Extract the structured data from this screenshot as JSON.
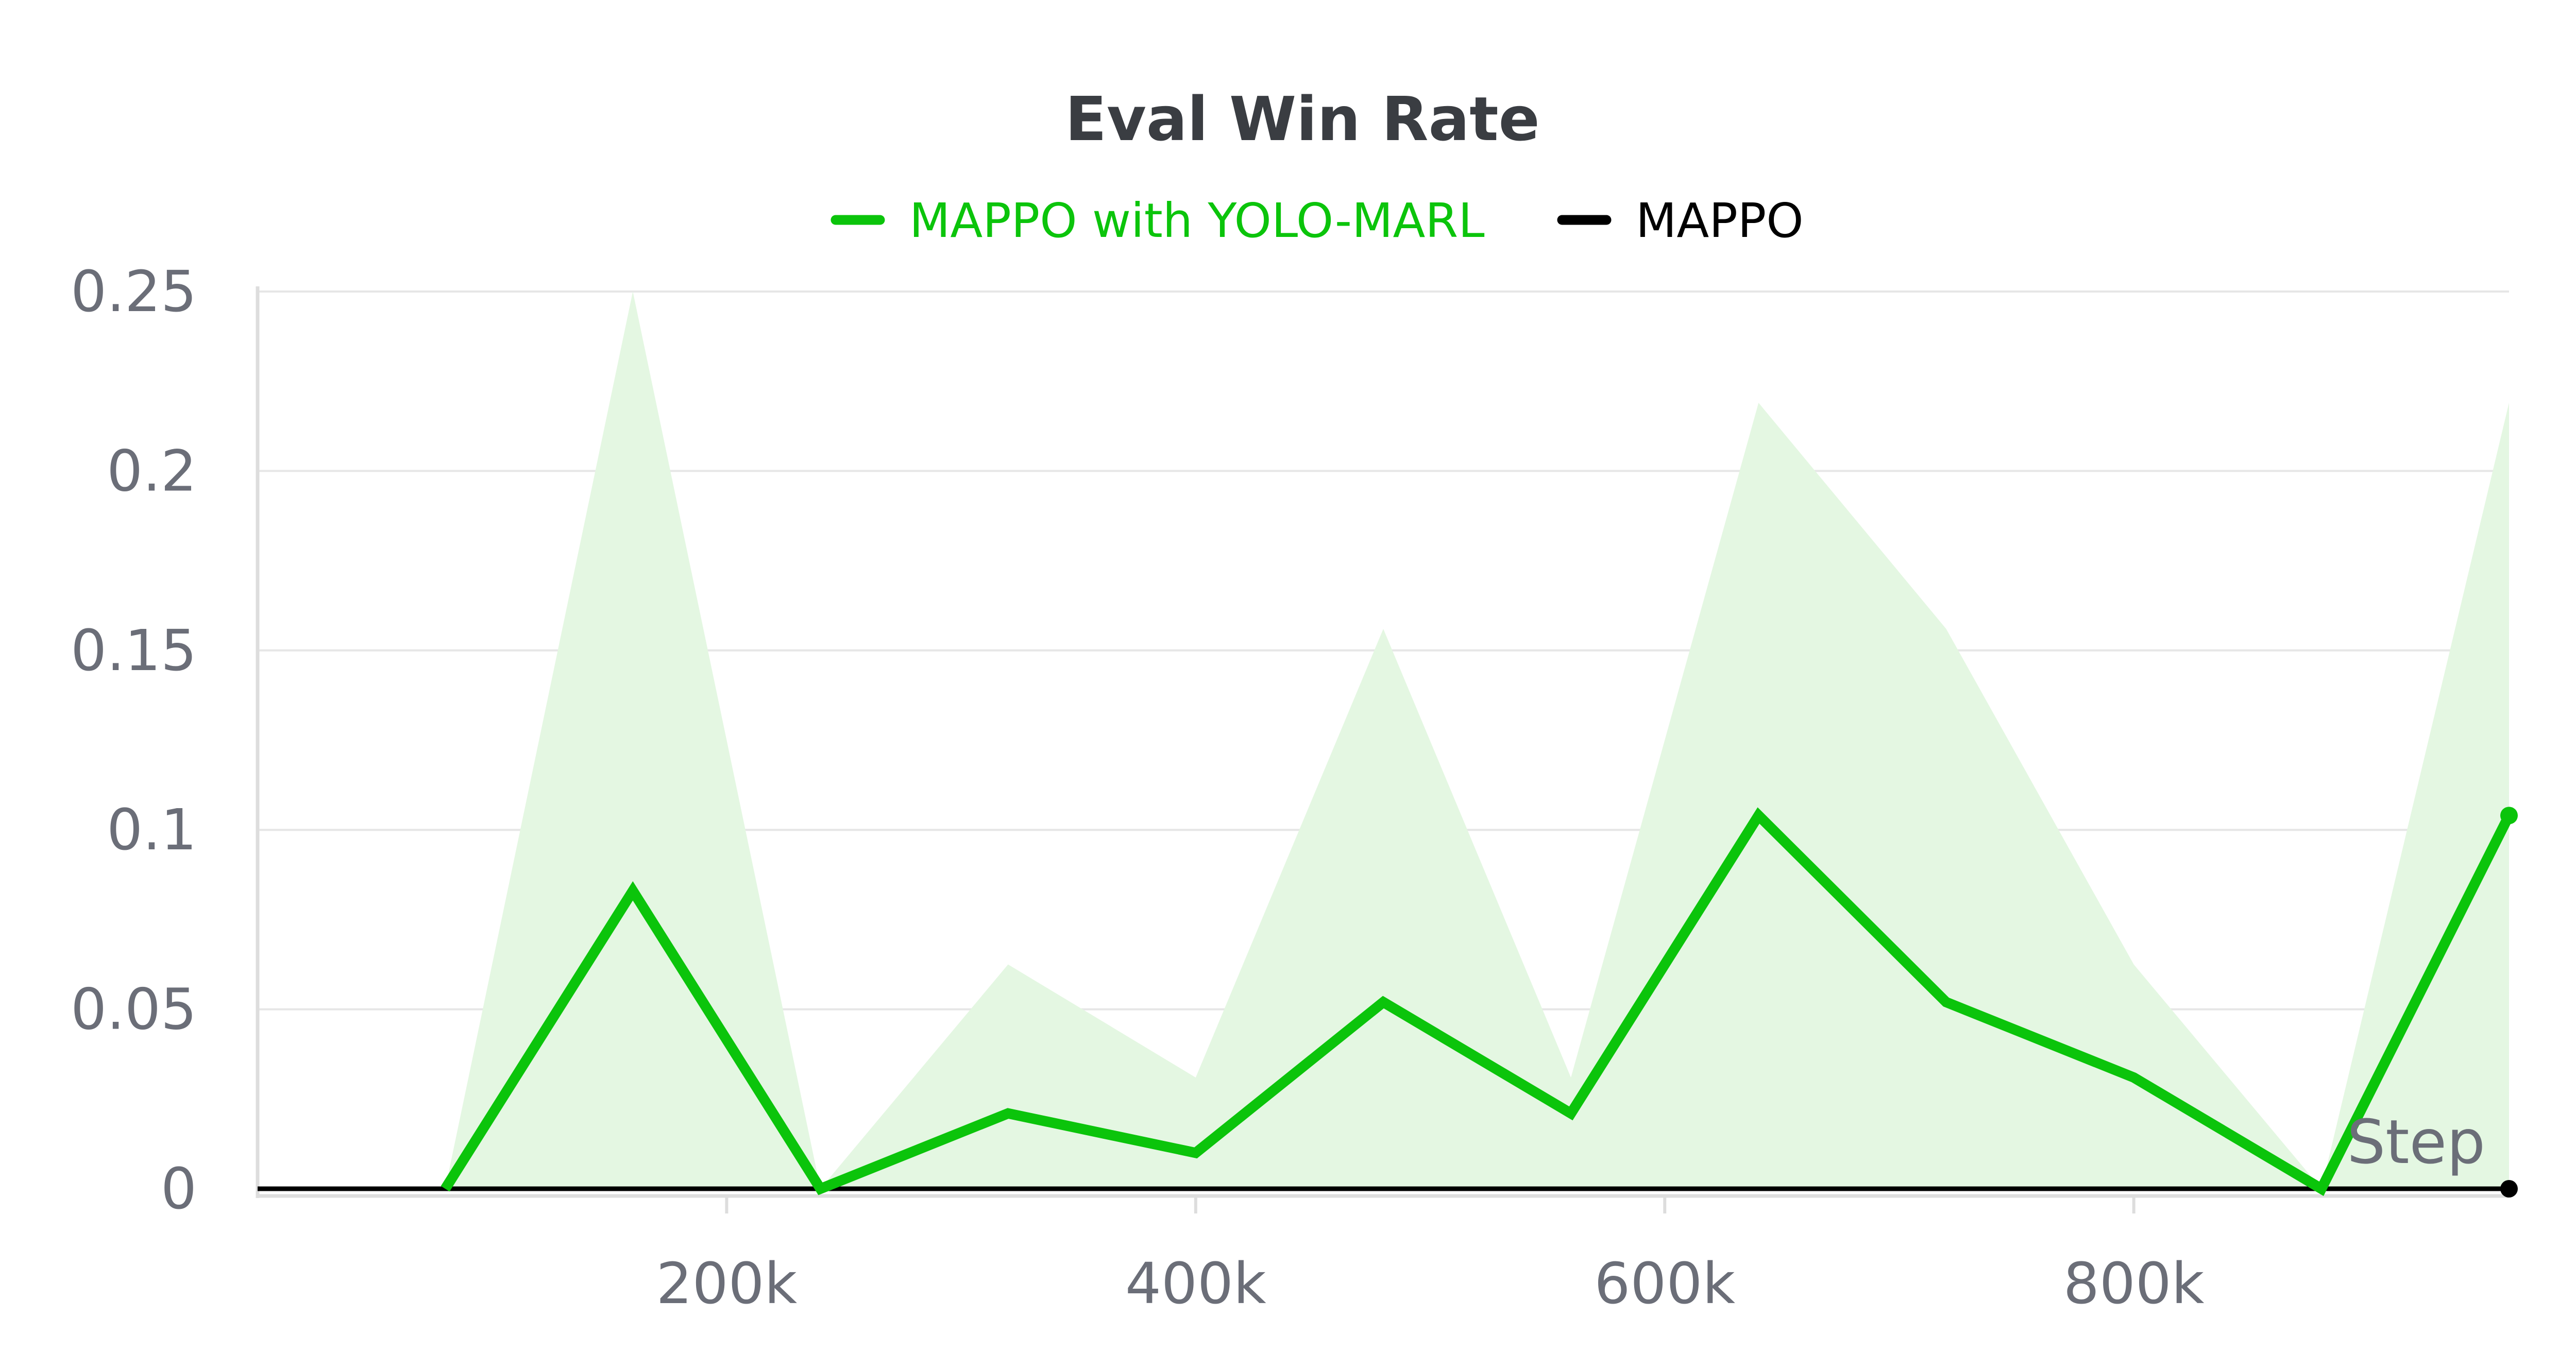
{
  "colors": {
    "series_1": "#0bc40b",
    "series_1_band": "#e4f7e2",
    "series_2": "#000000",
    "gridline": "#e6e6e6",
    "axis": "#dddddd",
    "text": "#6b6e78",
    "title": "#3a3d42"
  },
  "chart_data": {
    "type": "line",
    "title": "Eval Win Rate",
    "xlabel": "Step",
    "ylabel": "",
    "xlim": [
      0,
      960000
    ],
    "ylim": [
      0,
      0.25
    ],
    "x_ticks": [
      200000,
      400000,
      600000,
      800000
    ],
    "x_tick_labels": [
      "200k",
      "400k",
      "600k",
      "800k"
    ],
    "y_ticks": [
      0,
      0.05,
      0.1,
      0.15,
      0.2,
      0.25
    ],
    "y_tick_labels": [
      "0",
      "0.05",
      "0.1",
      "0.15",
      "0.2",
      "0.25"
    ],
    "grid": true,
    "legend_position": "top-center",
    "series": [
      {
        "name": "MAPPO with YOLO-MARL",
        "x": [
          80000,
          160000,
          240000,
          320000,
          400000,
          480000,
          560000,
          640000,
          720000,
          800000,
          880000,
          960000
        ],
        "values": [
          0,
          0.083,
          0,
          0.021,
          0.01,
          0.052,
          0.021,
          0.104,
          0.052,
          0.031,
          0,
          0.104
        ],
        "band_upper": [
          0,
          0.25,
          0,
          0.0625,
          0.031,
          0.156,
          0.031,
          0.219,
          0.156,
          0.0625,
          0,
          0.219
        ],
        "band_lower": [
          0,
          0,
          0,
          0,
          0,
          0,
          0,
          0,
          0,
          0,
          0,
          0
        ]
      },
      {
        "name": "MAPPO",
        "x": [
          0,
          960000
        ],
        "values": [
          0,
          0
        ]
      }
    ]
  }
}
